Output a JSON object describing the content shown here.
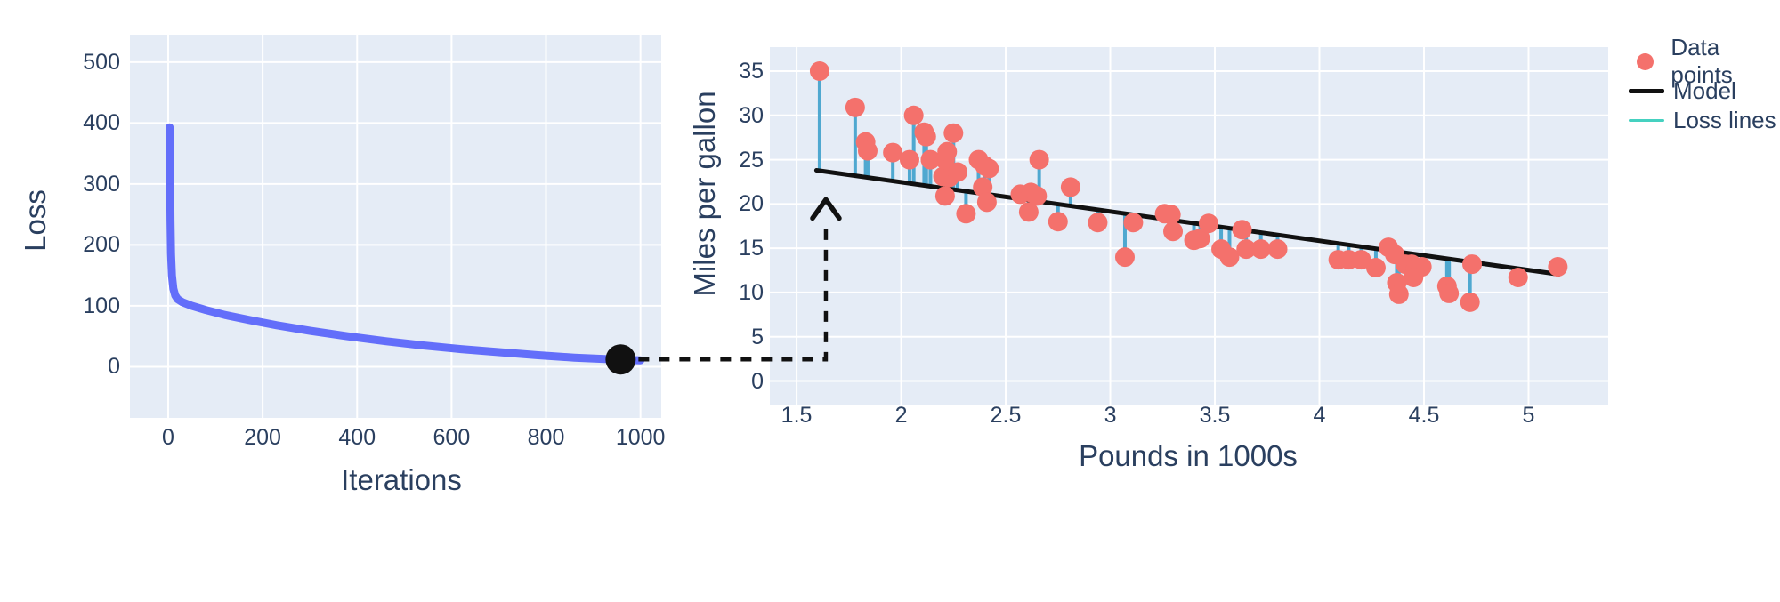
{
  "colors": {
    "page_bg": "#ffffff",
    "plot_bg": "#e5ecf6",
    "grid": "#ffffff",
    "text": "#2a3f5f",
    "loss_curve": "#636efa",
    "data_point": "#f4716c",
    "model_line": "#111111",
    "loss_stem": "#4fa8d0",
    "legend_loss_line": "#45d1c0",
    "annotation": "#111111"
  },
  "chart_data": [
    {
      "type": "line",
      "title": "",
      "xlabel": "Iterations",
      "ylabel": "Loss",
      "xlim": [
        -81,
        1044
      ],
      "ylim": [
        -84,
        545
      ],
      "xticks": [
        0,
        200,
        400,
        600,
        800,
        1000
      ],
      "yticks": [
        0,
        100,
        200,
        300,
        400,
        500
      ],
      "grid": true,
      "series": [
        {
          "name": "Training loss",
          "points": [
            [
              3,
              393
            ],
            [
              4,
              330
            ],
            [
              5,
              240
            ],
            [
              6,
              185
            ],
            [
              8,
              150
            ],
            [
              11,
              128
            ],
            [
              15,
              117
            ],
            [
              20,
              111
            ],
            [
              30,
              106
            ],
            [
              50,
              100
            ],
            [
              80,
              93
            ],
            [
              120,
              85
            ],
            [
              170,
              77
            ],
            [
              230,
              68
            ],
            [
              300,
              59
            ],
            [
              380,
              50
            ],
            [
              460,
              42
            ],
            [
              540,
              35
            ],
            [
              620,
              29
            ],
            [
              700,
              24
            ],
            [
              780,
              19
            ],
            [
              860,
              15
            ],
            [
              930,
              12.5
            ],
            [
              1000,
              10.5
            ]
          ]
        }
      ],
      "end_marker": {
        "x": 958,
        "y": 12,
        "shape": "filled-circle"
      }
    },
    {
      "type": "scatter",
      "title": "",
      "xlabel": "Pounds in 1000s",
      "ylabel": "Miles per gallon",
      "xlim": [
        1.372,
        5.381
      ],
      "ylim": [
        -2.66,
        37.71
      ],
      "xticks": [
        1.5,
        2,
        2.5,
        3,
        3.5,
        4,
        4.5,
        5
      ],
      "yticks": [
        0,
        5,
        10,
        15,
        20,
        25,
        30,
        35
      ],
      "grid": true,
      "legend": [
        {
          "label": "Data points",
          "swatch": "dot"
        },
        {
          "label": "Model",
          "swatch": "line-black"
        },
        {
          "label": "Loss lines",
          "swatch": "line-teal"
        }
      ],
      "model": {
        "slope": -3.31,
        "intercept": 29.08,
        "x_start": 1.595,
        "x_end": 5.145
      },
      "points": [
        [
          1.61,
          35.0
        ],
        [
          1.78,
          30.9
        ],
        [
          1.83,
          27.0
        ],
        [
          1.84,
          26.0
        ],
        [
          1.96,
          25.8
        ],
        [
          2.04,
          25.0
        ],
        [
          2.06,
          30.0
        ],
        [
          2.11,
          28.1
        ],
        [
          2.12,
          27.6
        ],
        [
          2.14,
          25.0
        ],
        [
          2.2,
          23.1
        ],
        [
          2.21,
          25.0
        ],
        [
          2.21,
          20.9
        ],
        [
          2.22,
          25.9
        ],
        [
          2.23,
          23.0
        ],
        [
          2.25,
          28.0
        ],
        [
          2.27,
          23.6
        ],
        [
          2.31,
          18.9
        ],
        [
          2.37,
          25.0
        ],
        [
          2.39,
          21.9
        ],
        [
          2.4,
          24.3
        ],
        [
          2.41,
          20.2
        ],
        [
          2.42,
          24.0
        ],
        [
          2.57,
          21.1
        ],
        [
          2.61,
          19.1
        ],
        [
          2.62,
          21.3
        ],
        [
          2.65,
          20.9
        ],
        [
          2.66,
          25.0
        ],
        [
          2.75,
          18.0
        ],
        [
          2.81,
          21.9
        ],
        [
          2.94,
          17.9
        ],
        [
          3.07,
          14.0
        ],
        [
          3.11,
          17.9
        ],
        [
          3.26,
          18.9
        ],
        [
          3.29,
          18.8
        ],
        [
          3.3,
          16.9
        ],
        [
          3.4,
          15.9
        ],
        [
          3.43,
          16.1
        ],
        [
          3.47,
          17.8
        ],
        [
          3.53,
          14.9
        ],
        [
          3.57,
          14.0
        ],
        [
          3.63,
          17.1
        ],
        [
          3.65,
          14.9
        ],
        [
          3.72,
          14.9
        ],
        [
          3.8,
          14.9
        ],
        [
          4.09,
          13.7
        ],
        [
          4.14,
          13.7
        ],
        [
          4.2,
          13.7
        ],
        [
          4.27,
          12.8
        ],
        [
          4.33,
          15.1
        ],
        [
          4.36,
          14.3
        ],
        [
          4.37,
          11.1
        ],
        [
          4.38,
          9.8
        ],
        [
          4.41,
          13.2
        ],
        [
          4.44,
          13.2
        ],
        [
          4.46,
          12.7
        ],
        [
          4.49,
          12.9
        ],
        [
          4.45,
          11.7
        ],
        [
          4.61,
          10.7
        ],
        [
          4.62,
          9.9
        ],
        [
          4.72,
          8.9
        ],
        [
          4.73,
          13.2
        ],
        [
          4.95,
          11.7
        ],
        [
          5.14,
          12.9
        ]
      ]
    }
  ],
  "annotation": {
    "description": "Dashed arrow from final loss value to the model line start",
    "dot_iteration": 958,
    "dot_loss": 12,
    "arrow_x_pounds": 1.64,
    "arrow_tip_mpg": 20.5
  }
}
